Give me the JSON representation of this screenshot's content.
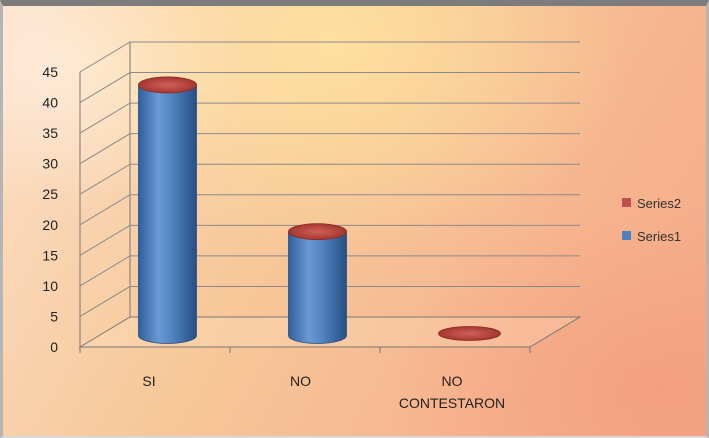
{
  "chart_data": {
    "type": "bar",
    "style": "3d-cylinder",
    "categories": [
      "SI",
      "NO",
      "NO\nCONTESTARON"
    ],
    "series": [
      {
        "name": "Series1",
        "values": [
          41,
          17,
          0
        ],
        "color": "#4f81bd"
      },
      {
        "name": "Series2",
        "values": [
          0,
          0,
          0
        ],
        "color": "#c0504d"
      }
    ],
    "ylim": [
      0,
      45
    ],
    "yticks": [
      0,
      5,
      10,
      15,
      20,
      25,
      30,
      35,
      40,
      45
    ],
    "grid": true,
    "legend_position": "right",
    "legend_order": [
      "Series2",
      "Series1"
    ]
  }
}
